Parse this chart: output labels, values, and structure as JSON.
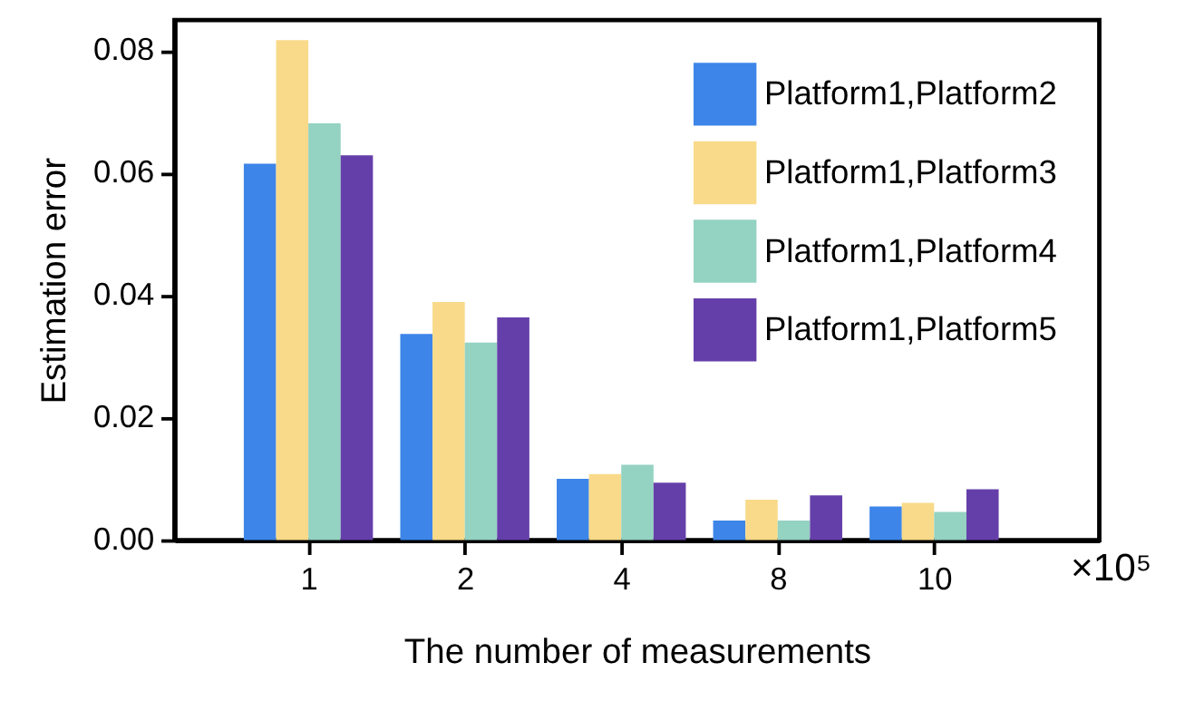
{
  "chart_data": {
    "type": "bar",
    "xlabel": "The number of measurements",
    "ylabel": "Estimation error",
    "categories": [
      "1",
      "2",
      "4",
      "8",
      "10"
    ],
    "series": [
      {
        "name": "Platform1,Platform2",
        "color": "#3d85e8",
        "values": [
          0.0615,
          0.0337,
          0.01,
          0.0032,
          0.0055
        ]
      },
      {
        "name": "Platform1,Platform3",
        "color": "#f8da8a",
        "values": [
          0.0817,
          0.0389,
          0.0108,
          0.0066,
          0.0061
        ]
      },
      {
        "name": "Platform1,Platform4",
        "color": "#94d2c2",
        "values": [
          0.0681,
          0.0323,
          0.0123,
          0.0032,
          0.0046
        ]
      },
      {
        "name": "Platform1,Platform5",
        "color": "#653fa9",
        "values": [
          0.0629,
          0.0364,
          0.0094,
          0.0073,
          0.0083
        ]
      }
    ],
    "ylim": [
      0,
      0.085
    ],
    "yticks": [
      {
        "value": 0,
        "label": "0.00"
      },
      {
        "value": 0.02,
        "label": "0.02"
      },
      {
        "value": 0.04,
        "label": "0.04"
      },
      {
        "value": 0.06,
        "label": "0.06"
      },
      {
        "value": 0.08,
        "label": "0.08"
      }
    ],
    "grid": false,
    "legend": "top right",
    "annotations": [
      "×10⁵"
    ]
  }
}
